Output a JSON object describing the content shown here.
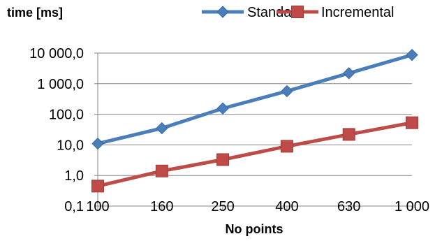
{
  "chart_data": {
    "type": "line",
    "title": "",
    "xlabel": "No points",
    "ylabel": "time [ms]",
    "y_scale": "log",
    "ylim": [
      0.1,
      10000
    ],
    "grid": "horizontal",
    "legend_position": "top-right",
    "x": [
      "100",
      "160",
      "250",
      "400",
      "630",
      "1 000"
    ],
    "x_values": [
      100,
      160,
      250,
      400,
      630,
      1000
    ],
    "y_ticks": [
      "0,1",
      "1,0",
      "10,0",
      "100,0",
      "1 000,0",
      "10 000,0"
    ],
    "y_tick_values": [
      0.1,
      1,
      10,
      100,
      1000,
      10000
    ],
    "series": [
      {
        "name": "Standard",
        "color": "#4a7ebb",
        "marker": "diamond",
        "values": [
          11,
          35,
          155,
          570,
          2200,
          8700
        ]
      },
      {
        "name": "Incremental",
        "color": "#be4b48",
        "marker": "square",
        "values": [
          0.45,
          1.4,
          3.3,
          9,
          22,
          53
        ]
      }
    ]
  }
}
